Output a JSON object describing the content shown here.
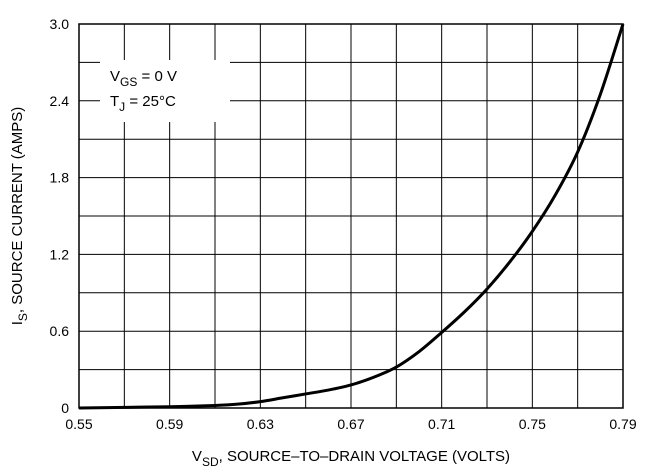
{
  "chart_data": {
    "type": "line",
    "title": "",
    "xlabel": {
      "main": "V",
      "sub": "SD",
      "rest": ", SOURCE–TO–DRAIN VOLTAGE (VOLTS)"
    },
    "ylabel": {
      "main": "I",
      "sub": "S",
      "rest": ", SOURCE CURRENT (AMPS)"
    },
    "xlim": [
      0.55,
      0.79
    ],
    "ylim": [
      0,
      3.0
    ],
    "x_ticks": [
      0.55,
      0.59,
      0.63,
      0.67,
      0.71,
      0.75,
      0.79
    ],
    "x_tick_labels": [
      "0.55",
      "0.59",
      "0.63",
      "0.67",
      "0.71",
      "0.75",
      "0.79"
    ],
    "y_ticks": [
      0,
      0.6,
      1.2,
      1.8,
      2.4,
      3.0
    ],
    "y_tick_labels": [
      "0",
      "0.6",
      "1.2",
      "1.8",
      "2.4",
      "3.0"
    ],
    "grid": true,
    "annotations": [
      {
        "main": "V",
        "sub": "GS",
        "rest": " = 0 V"
      },
      {
        "main": "T",
        "sub": "J",
        "rest": " = 25°C"
      }
    ],
    "series": [
      {
        "x": [
          0.55,
          0.57,
          0.59,
          0.61,
          0.62,
          0.63,
          0.64,
          0.65,
          0.66,
          0.67,
          0.68,
          0.69,
          0.7,
          0.71,
          0.72,
          0.73,
          0.74,
          0.75,
          0.76,
          0.77,
          0.78,
          0.79
        ],
        "y": [
          0.0,
          0.005,
          0.01,
          0.02,
          0.03,
          0.05,
          0.08,
          0.11,
          0.14,
          0.18,
          0.24,
          0.32,
          0.44,
          0.59,
          0.75,
          0.93,
          1.14,
          1.38,
          1.66,
          2.0,
          2.45,
          3.0
        ]
      }
    ]
  }
}
